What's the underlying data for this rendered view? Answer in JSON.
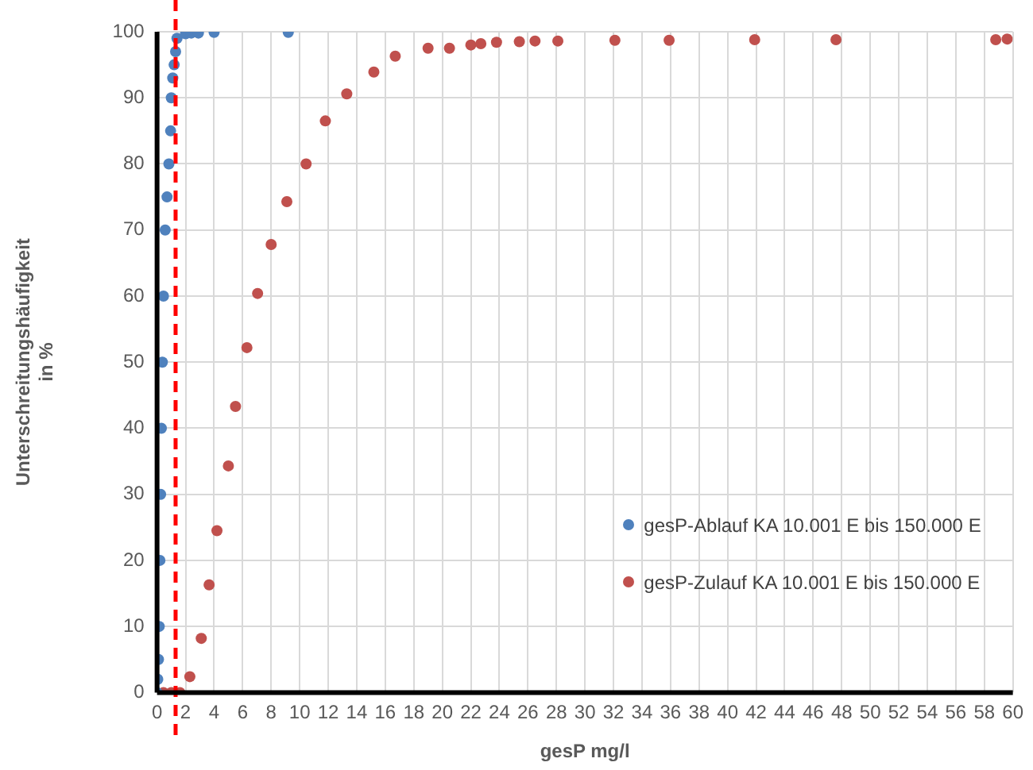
{
  "chart_data": {
    "type": "scatter",
    "xlabel": "gesP mg/l",
    "ylabel": "Unterschreitungshäufigkeit\nin %",
    "xlim": [
      0,
      60
    ],
    "xticks": [
      0,
      2,
      4,
      6,
      8,
      10,
      12,
      14,
      16,
      18,
      20,
      22,
      24,
      26,
      28,
      30,
      32,
      34,
      36,
      38,
      40,
      42,
      44,
      46,
      48,
      50,
      52,
      54,
      56,
      58,
      60
    ],
    "ylim": [
      0,
      100
    ],
    "yticks": [
      0,
      10,
      20,
      30,
      40,
      50,
      60,
      70,
      80,
      90,
      100
    ],
    "grid": true,
    "legend": "bottom right",
    "marker": "circle",
    "ref_lines": [
      {
        "axis": "x",
        "value": 1.3,
        "color": "#ff0000",
        "line_style": "dashed"
      }
    ],
    "series": [
      {
        "name": "gesP-Ablauf KA 10.001 E bis 150.000 E",
        "color": "#4f81bd",
        "x": [
          0,
          0.05,
          0.1,
          0.15,
          0.2,
          0.25,
          0.3,
          0.37,
          0.45,
          0.57,
          0.7,
          0.83,
          0.95,
          1.0,
          1.1,
          1.2,
          1.3,
          1.4,
          2.0,
          2.4,
          2.9,
          4.0,
          9.2
        ],
        "values": [
          0,
          2,
          5,
          10,
          20,
          30,
          40,
          50,
          60,
          70,
          75,
          80,
          85,
          90,
          93,
          95,
          97,
          99,
          99.7,
          99.8,
          99.8,
          99.9,
          99.9
        ]
      },
      {
        "name": "gesP-Zulauf KA 10.001 E bis 150.000 E",
        "color": "#c0504d",
        "x": [
          0.45,
          1.0,
          1.6,
          2.3,
          3.1,
          3.65,
          4.2,
          5.0,
          5.5,
          6.3,
          7.05,
          8.0,
          9.1,
          10.45,
          11.8,
          13.3,
          15.2,
          16.7,
          19,
          20.5,
          22.0,
          22.7,
          23.8,
          25.4,
          26.5,
          28.1,
          32.1,
          35.9,
          41.9,
          47.6,
          58.8,
          59.6
        ],
        "values": [
          0,
          0,
          0,
          2.4,
          8.2,
          16.3,
          24.5,
          34.3,
          43.3,
          52.2,
          60.4,
          67.8,
          74.3,
          80,
          86.5,
          90.6,
          93.9,
          96.3,
          97.5,
          97.5,
          98,
          98.2,
          98.4,
          98.5,
          98.6,
          98.6,
          98.7,
          98.7,
          98.8,
          98.8,
          98.8,
          98.9
        ]
      }
    ]
  }
}
